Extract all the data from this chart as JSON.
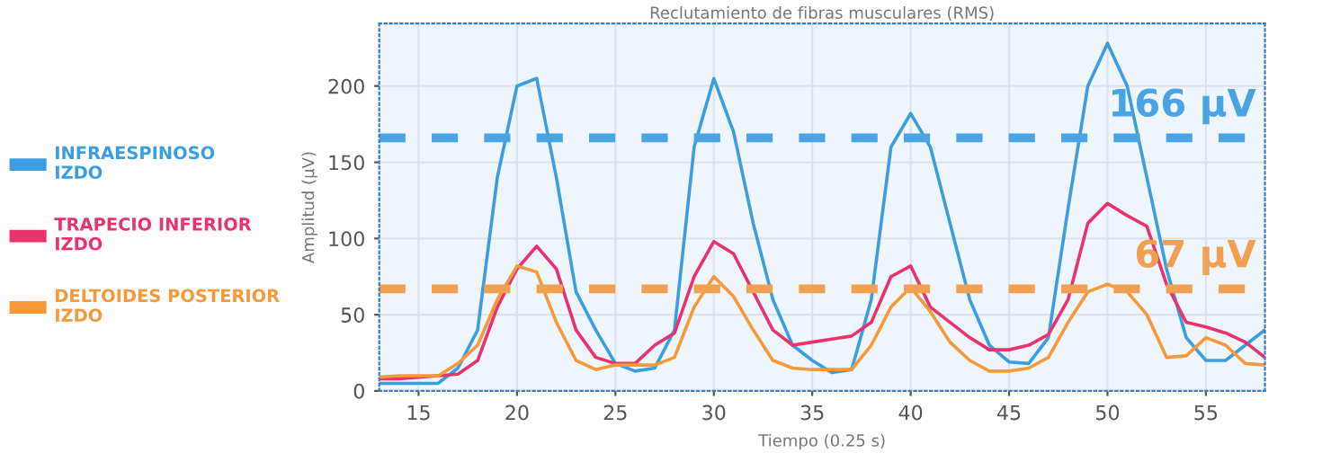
{
  "chart_data": {
    "type": "line",
    "title": "Reclutamiento de fibras musculares (RMS)",
    "xlabel": "Tiempo (0.25 s)",
    "ylabel": "Amplitud (µV)",
    "x": [
      13,
      14,
      15,
      16,
      17,
      18,
      19,
      20,
      21,
      22,
      23,
      24,
      25,
      26,
      27,
      28,
      29,
      30,
      31,
      32,
      33,
      34,
      35,
      36,
      37,
      38,
      39,
      40,
      41,
      42,
      43,
      44,
      45,
      46,
      47,
      48,
      49,
      50,
      51,
      52,
      53,
      54,
      55,
      56,
      57,
      58
    ],
    "series": [
      {
        "name": "INFRAESPINOSO\nIZDO",
        "color": "#3a9ee0",
        "values": [
          5,
          5,
          5,
          5,
          15,
          40,
          140,
          200,
          205,
          140,
          65,
          40,
          18,
          13,
          15,
          40,
          160,
          205,
          170,
          110,
          60,
          30,
          20,
          12,
          14,
          60,
          160,
          182,
          160,
          110,
          60,
          30,
          19,
          18,
          35,
          120,
          200,
          228,
          200,
          140,
          80,
          35,
          20,
          20,
          30,
          40
        ]
      },
      {
        "name": "TRAPECIO INFERIOR\nIZDO",
        "color": "#e8336d",
        "values": [
          8,
          8,
          9,
          10,
          11,
          20,
          55,
          80,
          95,
          80,
          40,
          22,
          18,
          18,
          30,
          38,
          75,
          98,
          90,
          65,
          40,
          30,
          32,
          34,
          36,
          45,
          75,
          82,
          55,
          45,
          35,
          27,
          27,
          30,
          37,
          60,
          110,
          123,
          115,
          108,
          70,
          45,
          42,
          38,
          32,
          22
        ]
      },
      {
        "name": "DELTOIDES POSTERIOR\nIZDO",
        "color": "#f5993a",
        "values": [
          9,
          10,
          10,
          10,
          18,
          30,
          60,
          82,
          78,
          45,
          20,
          14,
          17,
          17,
          17,
          22,
          55,
          75,
          62,
          40,
          20,
          15,
          14,
          14,
          14,
          30,
          55,
          68,
          52,
          32,
          20,
          13,
          13,
          15,
          22,
          45,
          65,
          70,
          65,
          50,
          22,
          23,
          35,
          30,
          18,
          17
        ]
      }
    ],
    "ref_lines": [
      {
        "axis": "y",
        "value": 166,
        "label": "166 µV",
        "color": "#4aa3e2",
        "line_style": "dashed"
      },
      {
        "axis": "y",
        "value": 67,
        "label": "67 µV",
        "color": "#f0a050",
        "line_style": "dashed"
      }
    ],
    "xlim": [
      13,
      58
    ],
    "ylim": [
      0,
      241
    ],
    "xticks": [
      15,
      20,
      25,
      30,
      35,
      40,
      45,
      50,
      55
    ],
    "yticks": [
      0,
      50,
      100,
      150,
      200
    ],
    "grid": true,
    "legend": "left",
    "marker": "none",
    "line_style": "solid"
  }
}
